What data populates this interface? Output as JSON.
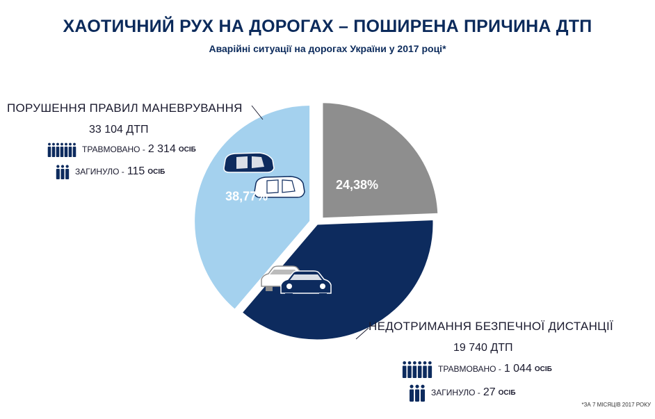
{
  "header": {
    "title": "ХАОТИЧНИЙ РУХ НА ДОРОГАХ – ПОШИРЕНА ПРИЧИНА ДТП",
    "subtitle": "Аварійні ситуації на дорогах України у 2017 році*"
  },
  "colors": {
    "dark_navy": "#0d2b5e",
    "light_blue": "#a4d1ee",
    "gray": "#8e8e8e",
    "icon_navy": "#0d2b5e"
  },
  "chart_data": {
    "type": "pie",
    "slices": [
      {
        "label": "ПОРУШЕННЯ ПРАВИЛ МАНЕВРУВАННЯ",
        "percent": 38.77,
        "percent_label": "38,77%",
        "color": "#a4d1ee"
      },
      {
        "label": "НЕДОТРИМАННЯ БЕЗПЕЧНОЇ ДИСТАНЦІЇ",
        "percent": 24.38,
        "percent_label": "24,38%",
        "color": "#8e8e8e"
      },
      {
        "label": "",
        "percent": 36.85,
        "percent_label": "",
        "color": "#0d2b5e"
      }
    ]
  },
  "categories": {
    "maneuver": {
      "title": "ПОРУШЕННЯ ПРАВИЛ МАНЕВРУВАННЯ",
      "count": "33 104  ДТП",
      "injured_label": "ТРАВМОВАНО -",
      "injured_value": "2 314",
      "injured_unit": "ОСІБ",
      "killed_label": "ЗАГИНУЛО -",
      "killed_value": "115",
      "killed_unit": "ОСІБ"
    },
    "distance": {
      "title": "НЕДОТРИМАННЯ БЕЗПЕЧНОЇ ДИСТАНЦІЇ",
      "count": "19 740 ДТП",
      "injured_label": "ТРАВМОВАНО -",
      "injured_value": "1 044",
      "injured_unit": "ОСІБ",
      "killed_label": "ЗАГИНУЛО -",
      "killed_value": "27",
      "killed_unit": "ОСІБ"
    }
  },
  "icons": {
    "cars_maneuver": "two-cars-passing-icon",
    "cars_distance": "two-cars-close-icon",
    "injured": "people-group-icon",
    "killed": "people-small-group-icon"
  },
  "footnote": "*ЗА 7 МІСЯЦІВ 2017 РОКУ"
}
